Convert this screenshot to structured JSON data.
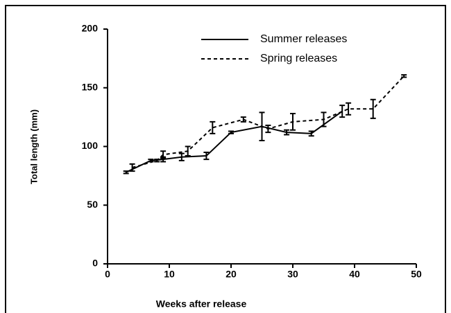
{
  "chart_data": {
    "type": "line",
    "xlabel": "Weeks after release",
    "ylabel": "Total length (mm)",
    "xlim": [
      0,
      50
    ],
    "xticks": [
      0,
      10,
      20,
      30,
      40,
      50
    ],
    "ylim": [
      0,
      200
    ],
    "yticks": [
      0,
      50,
      100,
      150,
      200
    ],
    "legend": "top",
    "series": [
      {
        "name": "Summer releases",
        "color": "#000000",
        "dash": "solid",
        "x": [
          3,
          7,
          9,
          12,
          16,
          20,
          25,
          29,
          33,
          38
        ],
        "values": [
          78,
          88,
          89,
          91,
          92,
          112,
          117,
          112,
          111,
          130
        ],
        "errors": [
          1,
          1,
          2,
          3,
          3,
          1,
          12,
          2,
          2,
          5
        ]
      },
      {
        "name": "Spring releases",
        "color": "#000000",
        "dash": "dashed",
        "x": [
          4,
          8,
          9,
          13,
          17,
          22,
          26,
          30,
          35,
          39,
          43,
          48
        ],
        "values": [
          82,
          88,
          93,
          96,
          116,
          123,
          115,
          121,
          123,
          132,
          132,
          160
        ],
        "errors": [
          3,
          1,
          3,
          4,
          5,
          2,
          3,
          7,
          6,
          5,
          8,
          1
        ]
      }
    ]
  }
}
